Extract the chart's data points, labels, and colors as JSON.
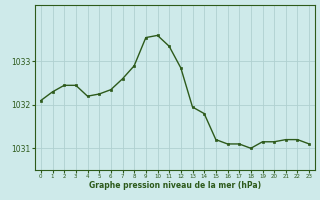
{
  "hours": [
    0,
    1,
    2,
    3,
    4,
    5,
    6,
    7,
    8,
    9,
    10,
    11,
    12,
    13,
    14,
    15,
    16,
    17,
    18,
    19,
    20,
    21,
    22,
    23
  ],
  "pressure": [
    1032.1,
    1032.3,
    1032.45,
    1032.45,
    1032.2,
    1032.25,
    1032.35,
    1032.6,
    1032.9,
    1033.55,
    1033.6,
    1033.35,
    1032.85,
    1031.95,
    1031.8,
    1031.2,
    1031.1,
    1031.1,
    1031.0,
    1031.15,
    1031.15,
    1031.2,
    1031.2,
    1031.1
  ],
  "line_color": "#2d5a1b",
  "marker_color": "#2d5a1b",
  "bg_color": "#ceeaea",
  "grid_color": "#b0d0d0",
  "xlabel": "Graphe pression niveau de la mer (hPa)",
  "xlabel_color": "#2d5a1b",
  "tick_color": "#2d5a1b",
  "ylim_min": 1030.5,
  "ylim_max": 1034.3,
  "yticks": [
    1031,
    1032,
    1033
  ],
  "spine_color": "#2d5a1b"
}
